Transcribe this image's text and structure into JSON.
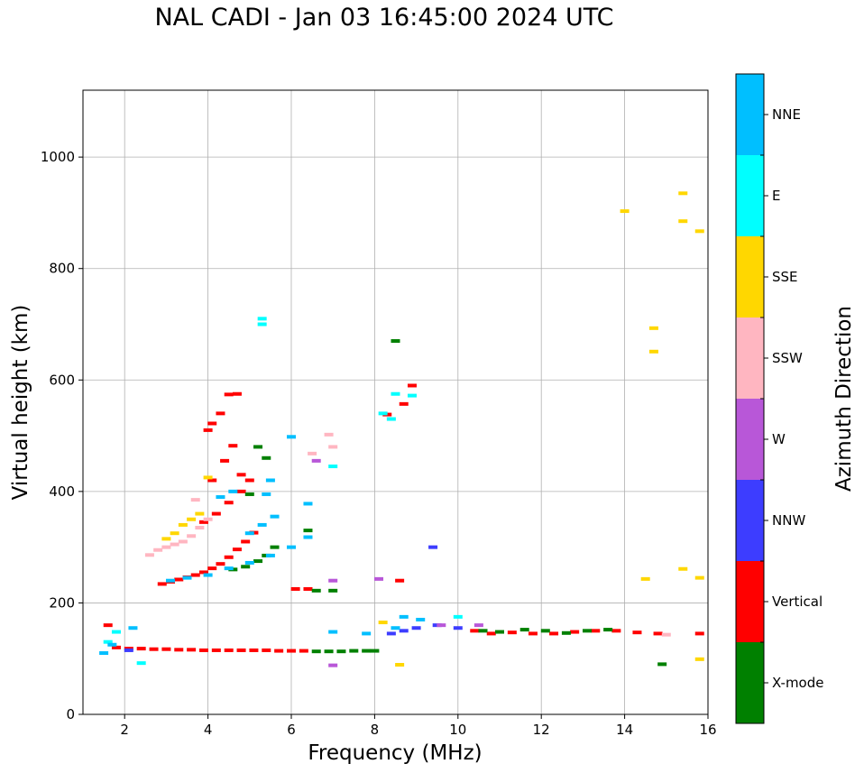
{
  "chart_data": {
    "type": "scatter",
    "title": "NAL CADI - Jan 03 16:45:00 2024 UTC",
    "xlabel": "Frequency (MHz)",
    "ylabel": "Virtual height (km)",
    "xlim": [
      1,
      16
    ],
    "ylim": [
      0,
      1120
    ],
    "xticks": [
      2,
      4,
      6,
      8,
      10,
      12,
      14,
      16
    ],
    "yticks": [
      0,
      200,
      400,
      600,
      800,
      1000
    ],
    "grid": true,
    "legend": "colorbar-right",
    "colorbar": {
      "label": "Azimuth Direction",
      "categories": [
        "X-mode",
        "Vertical",
        "NNW",
        "W",
        "SSW",
        "SSE",
        "E",
        "NNE"
      ],
      "colors": [
        "#008000",
        "#ff0000",
        "#3d3dff",
        "#b857d8",
        "#ffb6c1",
        "#ffd700",
        "#00ffff",
        "#00bfff"
      ]
    },
    "series": [
      {
        "name": "Vertical",
        "color": "#ff0000",
        "points": [
          [
            1.6,
            160
          ],
          [
            1.8,
            120
          ],
          [
            2.1,
            118
          ],
          [
            2.4,
            118
          ],
          [
            2.7,
            117
          ],
          [
            3.0,
            117
          ],
          [
            3.3,
            116
          ],
          [
            3.6,
            116
          ],
          [
            3.9,
            115
          ],
          [
            4.2,
            115
          ],
          [
            4.5,
            115
          ],
          [
            4.8,
            115
          ],
          [
            5.1,
            115
          ],
          [
            5.4,
            115
          ],
          [
            5.7,
            114
          ],
          [
            6.0,
            114
          ],
          [
            6.3,
            114
          ],
          [
            2.9,
            234
          ],
          [
            3.1,
            238
          ],
          [
            3.3,
            242
          ],
          [
            3.5,
            246
          ],
          [
            3.7,
            250
          ],
          [
            3.9,
            255
          ],
          [
            4.1,
            262
          ],
          [
            4.3,
            270
          ],
          [
            4.5,
            282
          ],
          [
            4.7,
            296
          ],
          [
            4.9,
            310
          ],
          [
            5.1,
            326
          ],
          [
            4.0,
            510
          ],
          [
            4.1,
            522
          ],
          [
            4.3,
            540
          ],
          [
            4.5,
            574
          ],
          [
            4.7,
            575
          ],
          [
            8.9,
            590
          ],
          [
            8.7,
            557
          ],
          [
            8.3,
            538
          ],
          [
            3.9,
            345
          ],
          [
            4.2,
            360
          ],
          [
            4.5,
            380
          ],
          [
            4.8,
            400
          ],
          [
            5.0,
            420
          ],
          [
            4.4,
            455
          ],
          [
            4.6,
            482
          ],
          [
            4.1,
            420
          ],
          [
            4.8,
            430
          ],
          [
            6.1,
            225
          ],
          [
            6.4,
            225
          ],
          [
            8.6,
            240
          ],
          [
            10.4,
            150
          ],
          [
            10.8,
            145
          ],
          [
            11.3,
            147
          ],
          [
            11.8,
            145
          ],
          [
            12.3,
            145
          ],
          [
            12.8,
            148
          ],
          [
            13.3,
            150
          ],
          [
            13.8,
            150
          ],
          [
            14.3,
            147
          ],
          [
            14.8,
            145
          ],
          [
            15.8,
            145
          ]
        ]
      },
      {
        "name": "X-mode",
        "color": "#008000",
        "points": [
          [
            6.6,
            113
          ],
          [
            6.9,
            113
          ],
          [
            7.2,
            113
          ],
          [
            7.5,
            114
          ],
          [
            7.8,
            114
          ],
          [
            8.0,
            114
          ],
          [
            4.6,
            260
          ],
          [
            4.9,
            265
          ],
          [
            5.2,
            275
          ],
          [
            5.4,
            285
          ],
          [
            5.6,
            300
          ],
          [
            6.4,
            330
          ],
          [
            5.0,
            395
          ],
          [
            5.4,
            460
          ],
          [
            5.2,
            480
          ],
          [
            6.6,
            222
          ],
          [
            7.0,
            222
          ],
          [
            8.5,
            670
          ],
          [
            10.6,
            150
          ],
          [
            11.0,
            148
          ],
          [
            11.6,
            152
          ],
          [
            12.1,
            150
          ],
          [
            12.6,
            146
          ],
          [
            13.1,
            150
          ],
          [
            13.6,
            152
          ],
          [
            14.9,
            90
          ]
        ]
      },
      {
        "name": "NNW",
        "color": "#3d3dff",
        "points": [
          [
            8.4,
            145
          ],
          [
            8.7,
            150
          ],
          [
            9.0,
            155
          ],
          [
            9.5,
            160
          ],
          [
            10.0,
            155
          ],
          [
            9.4,
            300
          ],
          [
            2.1,
            115
          ]
        ]
      },
      {
        "name": "W",
        "color": "#b857d8",
        "points": [
          [
            6.6,
            455
          ],
          [
            7.0,
            240
          ],
          [
            8.1,
            243
          ],
          [
            9.6,
            160
          ],
          [
            7.0,
            88
          ],
          [
            10.5,
            160
          ]
        ]
      },
      {
        "name": "SSW",
        "color": "#ffb6c1",
        "points": [
          [
            2.6,
            286
          ],
          [
            2.8,
            295
          ],
          [
            3.0,
            300
          ],
          [
            3.2,
            305
          ],
          [
            3.4,
            310
          ],
          [
            3.6,
            320
          ],
          [
            3.8,
            335
          ],
          [
            4.0,
            350
          ],
          [
            3.7,
            385
          ],
          [
            6.5,
            468
          ],
          [
            6.9,
            502
          ],
          [
            7.0,
            480
          ],
          [
            15.0,
            143
          ]
        ]
      },
      {
        "name": "SSE",
        "color": "#ffd700",
        "points": [
          [
            3.0,
            315
          ],
          [
            3.2,
            325
          ],
          [
            3.4,
            340
          ],
          [
            3.6,
            350
          ],
          [
            3.8,
            360
          ],
          [
            4.0,
            425
          ],
          [
            15.4,
            935
          ],
          [
            15.4,
            885
          ],
          [
            15.8,
            867
          ],
          [
            14.0,
            903
          ],
          [
            14.7,
            693
          ],
          [
            14.7,
            651
          ],
          [
            15.4,
            261
          ],
          [
            15.8,
            245
          ],
          [
            14.5,
            243
          ],
          [
            8.6,
            89
          ],
          [
            15.8,
            99
          ],
          [
            8.2,
            165
          ]
        ]
      },
      {
        "name": "E",
        "color": "#00ffff",
        "points": [
          [
            5.3,
            710
          ],
          [
            5.3,
            700
          ],
          [
            8.2,
            540
          ],
          [
            8.5,
            575
          ],
          [
            8.9,
            572
          ],
          [
            8.4,
            530
          ],
          [
            7.0,
            445
          ],
          [
            1.6,
            130
          ],
          [
            1.8,
            148
          ],
          [
            2.4,
            92
          ],
          [
            10.0,
            175
          ]
        ]
      },
      {
        "name": "NNE",
        "color": "#00bfff",
        "points": [
          [
            1.5,
            110
          ],
          [
            1.7,
            125
          ],
          [
            2.2,
            155
          ],
          [
            3.1,
            240
          ],
          [
            3.5,
            245
          ],
          [
            4.0,
            250
          ],
          [
            4.5,
            262
          ],
          [
            5.0,
            272
          ],
          [
            5.5,
            285
          ],
          [
            6.0,
            300
          ],
          [
            6.4,
            318
          ],
          [
            6.4,
            378
          ],
          [
            5.6,
            355
          ],
          [
            5.3,
            340
          ],
          [
            5.0,
            325
          ],
          [
            5.4,
            395
          ],
          [
            5.5,
            420
          ],
          [
            6.0,
            498
          ],
          [
            4.3,
            390
          ],
          [
            4.6,
            400
          ],
          [
            7.8,
            145
          ],
          [
            8.7,
            175
          ],
          [
            9.1,
            170
          ],
          [
            8.5,
            155
          ],
          [
            7.0,
            148
          ]
        ]
      }
    ]
  }
}
